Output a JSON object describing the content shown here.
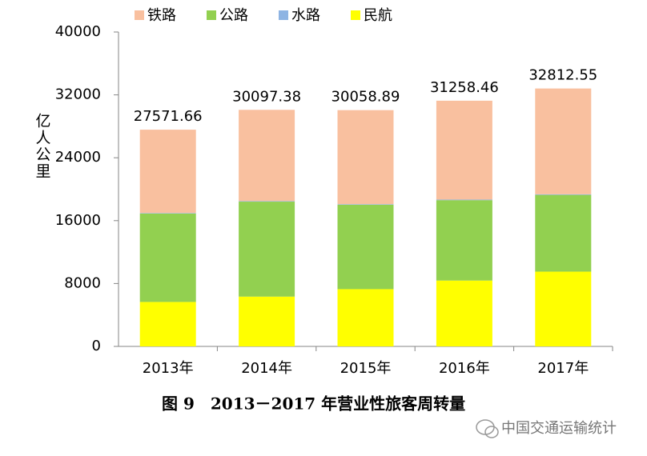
{
  "chart_data": {
    "type": "stacked_bar",
    "caption": "图 9　2013－2017 年营业性旅客周转量",
    "watermark": "中国交通运输统计",
    "y_label": "亿人公里",
    "categories": [
      "2013年",
      "2014年",
      "2015年",
      "2016年",
      "2017年"
    ],
    "series": [
      {
        "name": "民航",
        "color": "#ffff00",
        "values": [
          5656.76,
          6334.19,
          7282.55,
          8378.13,
          9512.96
        ]
      },
      {
        "name": "公路",
        "color": "#92d050",
        "values": [
          11250.94,
          12084.1,
          10742.66,
          10228.71,
          9765.18
        ]
      },
      {
        "name": "水路",
        "color": "#8eb4e3",
        "values": [
          68.33,
          74.34,
          73.08,
          72.33,
          77.66
        ]
      },
      {
        "name": "铁路",
        "color": "#f9c09f",
        "values": [
          10595.63,
          11604.75,
          11960.6,
          12579.29,
          13456.75
        ]
      }
    ],
    "totals": [
      27571.66,
      30097.38,
      30058.89,
      31258.46,
      32812.55
    ],
    "legend_order": [
      3,
      1,
      2,
      0
    ],
    "ylim": [
      0,
      40000
    ],
    "yticks": [
      0,
      8000,
      16000,
      24000,
      32000,
      40000
    ]
  }
}
